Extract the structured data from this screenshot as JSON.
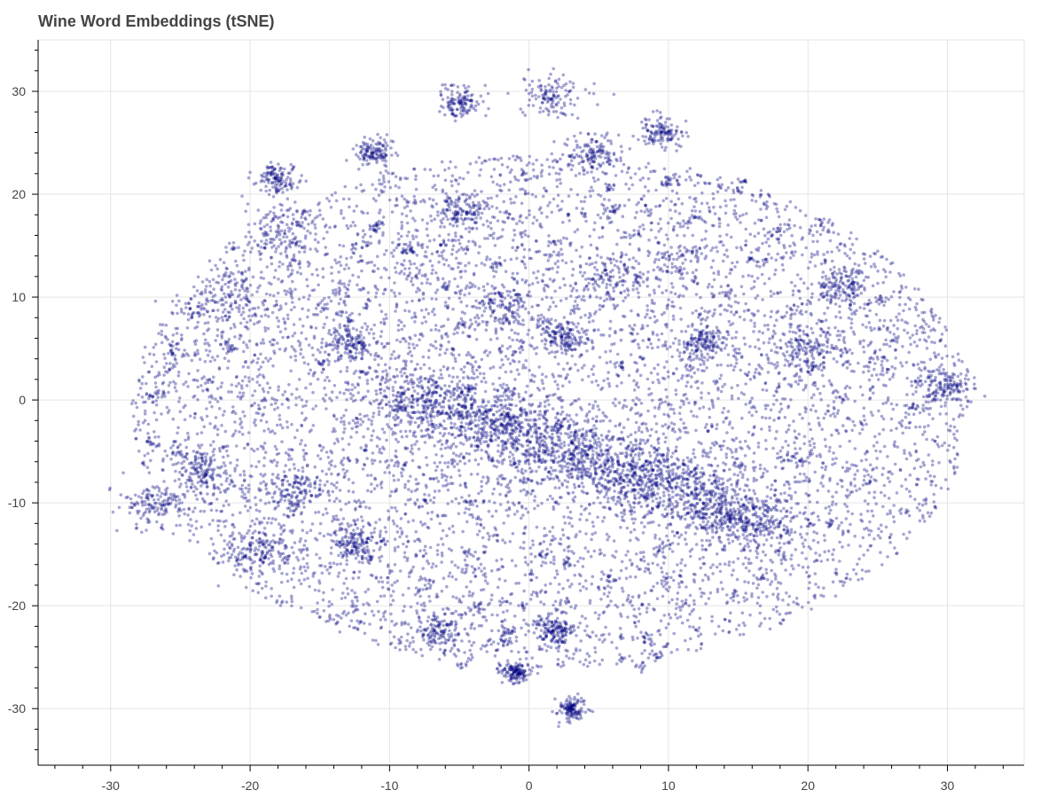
{
  "chart_data": {
    "type": "scatter",
    "title": "Wine Word Embeddings (tSNE)",
    "xlabel": "",
    "ylabel": "",
    "xlim": [
      -35.2,
      35.5
    ],
    "ylim": [
      -35.5,
      35
    ],
    "xticks": [
      -30,
      -20,
      -10,
      0,
      10,
      20,
      30
    ],
    "yticks": [
      30,
      20,
      10,
      0,
      -10,
      -20,
      -30
    ],
    "xtick_labels": [
      "-30",
      "-20",
      "-10",
      "0",
      "10",
      "20",
      "30"
    ],
    "ytick_labels": [
      "30",
      "20",
      "10",
      "0",
      "-10",
      "-20",
      "-30"
    ],
    "grid": true,
    "legend": "none",
    "point_color": "#000080",
    "marker": "circle",
    "estimated_point_count": 12000,
    "clusters": [
      {
        "x": -17.5,
        "y": 16.5,
        "spread": 1.5
      },
      {
        "x": -18.0,
        "y": 21.5,
        "spread": 0.7
      },
      {
        "x": -21.5,
        "y": 9.0,
        "spread": 1.8
      },
      {
        "x": -16.5,
        "y": -8.5,
        "spread": 1.2
      },
      {
        "x": -19.5,
        "y": -14.5,
        "spread": 1.2
      },
      {
        "x": -23.5,
        "y": -7.0,
        "spread": 1.0
      },
      {
        "x": -27.0,
        "y": -10.5,
        "spread": 1.1
      },
      {
        "x": -13.0,
        "y": 5.5,
        "spread": 1.0
      },
      {
        "x": -5.0,
        "y": 29.0,
        "spread": 0.8
      },
      {
        "x": 1.5,
        "y": 29.5,
        "spread": 1.1
      },
      {
        "x": 4.5,
        "y": 24.0,
        "spread": 0.9
      },
      {
        "x": 9.5,
        "y": 26.0,
        "spread": 0.8
      },
      {
        "x": 6.5,
        "y": 12.0,
        "spread": 1.3
      },
      {
        "x": -5.0,
        "y": 18.5,
        "spread": 1.0
      },
      {
        "x": -2.0,
        "y": 9.0,
        "spread": 1.2
      },
      {
        "x": 2.5,
        "y": 6.0,
        "spread": 0.8
      },
      {
        "x": 12.5,
        "y": 5.5,
        "spread": 0.8
      },
      {
        "x": -6.5,
        "y": -22.5,
        "spread": 1.0
      },
      {
        "x": 2.0,
        "y": -22.5,
        "spread": 0.7
      },
      {
        "x": -11.0,
        "y": 24.0,
        "spread": 0.7
      },
      {
        "x": 22.5,
        "y": 11.0,
        "spread": 1.0
      },
      {
        "x": 30.0,
        "y": 1.5,
        "spread": 0.9
      },
      {
        "x": 15.5,
        "y": -12.0,
        "spread": 1.8
      },
      {
        "x": 9.0,
        "y": -7.5,
        "spread": 2.0
      },
      {
        "x": -0.5,
        "y": -3.0,
        "spread": 2.2
      },
      {
        "x": 20.0,
        "y": 5.0,
        "spread": 1.2
      },
      {
        "x": -12.5,
        "y": -14.0,
        "spread": 0.8
      },
      {
        "x": 3.0,
        "y": -30.0,
        "spread": 0.5
      },
      {
        "x": -1.0,
        "y": -26.5,
        "spread": 0.5
      }
    ]
  }
}
